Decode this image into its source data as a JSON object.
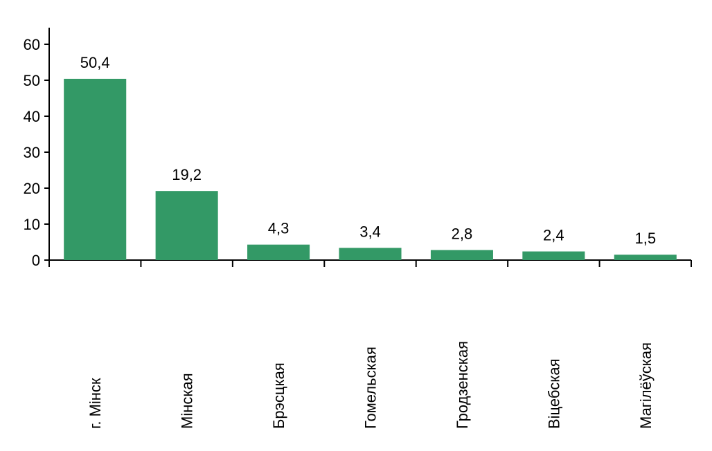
{
  "chart_data": {
    "type": "bar",
    "categories": [
      "г. Мінск",
      "Мінская",
      "Брэсцкая",
      "Гомельская",
      "Гродзенская",
      "Віцебская",
      "Магілёўская"
    ],
    "values": [
      50.4,
      19.2,
      4.3,
      3.4,
      2.8,
      2.4,
      1.5
    ],
    "value_labels": [
      "50,4",
      "19,2",
      "4,3",
      "3,4",
      "2,8",
      "2,4",
      "1,5"
    ],
    "y_ticks": [
      0,
      10,
      20,
      30,
      40,
      50,
      60
    ],
    "ylim": [
      0,
      60
    ],
    "title": "",
    "xlabel": "",
    "ylabel": "",
    "grid": false,
    "legend": "none",
    "bar_color": "#339966",
    "category_label_orientation": "vertical"
  }
}
